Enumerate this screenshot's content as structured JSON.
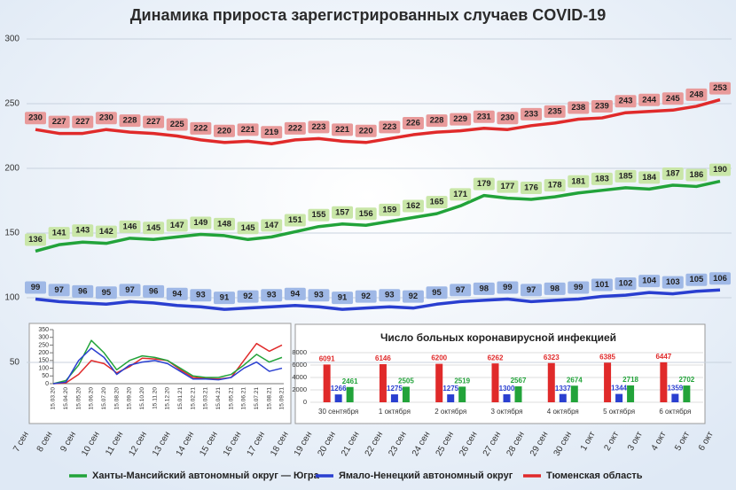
{
  "chart_data": [
    {
      "type": "line",
      "title": "Динамика прироста зарегистрированных случаев COVID-19",
      "categories": [
        "7 сен",
        "8 сен",
        "9 сен",
        "10 сен",
        "11 сен",
        "12 сен",
        "13 сен",
        "14 сен",
        "15 сен",
        "16 сен",
        "17 сен",
        "18 сен",
        "19 сен",
        "20 сен",
        "21 сен",
        "22 сен",
        "23 сен",
        "24 сен",
        "25 сен",
        "26 сен",
        "27 сен",
        "28 сен",
        "29 сен",
        "30 сен",
        "1 окт",
        "2 окт",
        "3 окт",
        "4 окт",
        "5 окт",
        "6 окт"
      ],
      "series": [
        {
          "name": "Ханты-Мансийский автономный округ — Югра",
          "color": "#22a33a",
          "values": [
            136,
            141,
            143,
            142,
            146,
            145,
            147,
            149,
            148,
            145,
            147,
            151,
            155,
            157,
            156,
            159,
            162,
            165,
            171,
            179,
            177,
            176,
            178,
            181,
            183,
            185,
            184,
            187,
            186,
            190
          ]
        },
        {
          "name": "Ямало-Ненецкий автономный округ",
          "color": "#2a3fd0",
          "values": [
            99,
            97,
            96,
            95,
            97,
            96,
            94,
            93,
            91,
            92,
            93,
            94,
            93,
            91,
            92,
            93,
            92,
            95,
            97,
            98,
            99,
            97,
            98,
            99,
            101,
            102,
            104,
            103,
            105,
            106
          ]
        },
        {
          "name": "Тюменская область",
          "color": "#e02a2a",
          "values": [
            230,
            227,
            227,
            230,
            228,
            227,
            225,
            222,
            220,
            221,
            219,
            222,
            223,
            221,
            220,
            223,
            226,
            228,
            229,
            231,
            230,
            233,
            235,
            238,
            239,
            243,
            244,
            245,
            248,
            253
          ]
        }
      ],
      "ylim": [
        0,
        300
      ],
      "yticks": [
        50,
        100,
        150,
        200,
        250,
        300
      ],
      "grid": true,
      "legend": "bottom"
    },
    {
      "type": "line",
      "categories": [
        "15.03.20",
        "15.04.20",
        "15.05.20",
        "15.06.20",
        "15.07.20",
        "15.08.20",
        "15.09.20",
        "15.10.20",
        "15.11.20",
        "15.12.20",
        "15.01.21",
        "15.02.21",
        "15.03.21",
        "15.04.21",
        "15.05.21",
        "15.06.21",
        "15.07.21",
        "15.08.21",
        "15.09.21"
      ],
      "series": [
        {
          "color": "#e02a2a",
          "values": [
            0,
            5,
            60,
            150,
            130,
            70,
            110,
            165,
            160,
            150,
            90,
            40,
            35,
            30,
            40,
            150,
            260,
            210,
            250
          ]
        },
        {
          "color": "#22a33a",
          "values": [
            0,
            20,
            120,
            280,
            200,
            90,
            150,
            180,
            170,
            150,
            100,
            50,
            40,
            40,
            60,
            120,
            190,
            140,
            170
          ]
        },
        {
          "color": "#2a3fd0",
          "values": [
            0,
            10,
            150,
            230,
            170,
            60,
            120,
            140,
            150,
            130,
            80,
            30,
            30,
            25,
            40,
            100,
            140,
            80,
            100
          ]
        }
      ],
      "ylim": [
        0,
        350
      ],
      "yticks": [
        0,
        50,
        100,
        150,
        200,
        250,
        300,
        350
      ]
    },
    {
      "type": "bar",
      "title": "Число больных коронавирусной инфекцией",
      "categories": [
        "30 сентября",
        "1 октября",
        "2 октября",
        "3 октября",
        "4 октября",
        "5 октября",
        "6 октября"
      ],
      "series": [
        {
          "color": "#e02a2a",
          "values": [
            6091,
            6146,
            6200,
            6262,
            6323,
            6385,
            6447
          ]
        },
        {
          "color": "#2a3fd0",
          "values": [
            1266,
            1275,
            1275,
            1300,
            1337,
            1344,
            1359
          ]
        },
        {
          "color": "#22a33a",
          "values": [
            2461,
            2505,
            2519,
            2567,
            2674,
            2718,
            2702
          ]
        }
      ],
      "ylim": [
        0,
        8000
      ],
      "yticks": [
        0,
        2000,
        4000,
        6000,
        8000
      ]
    }
  ]
}
